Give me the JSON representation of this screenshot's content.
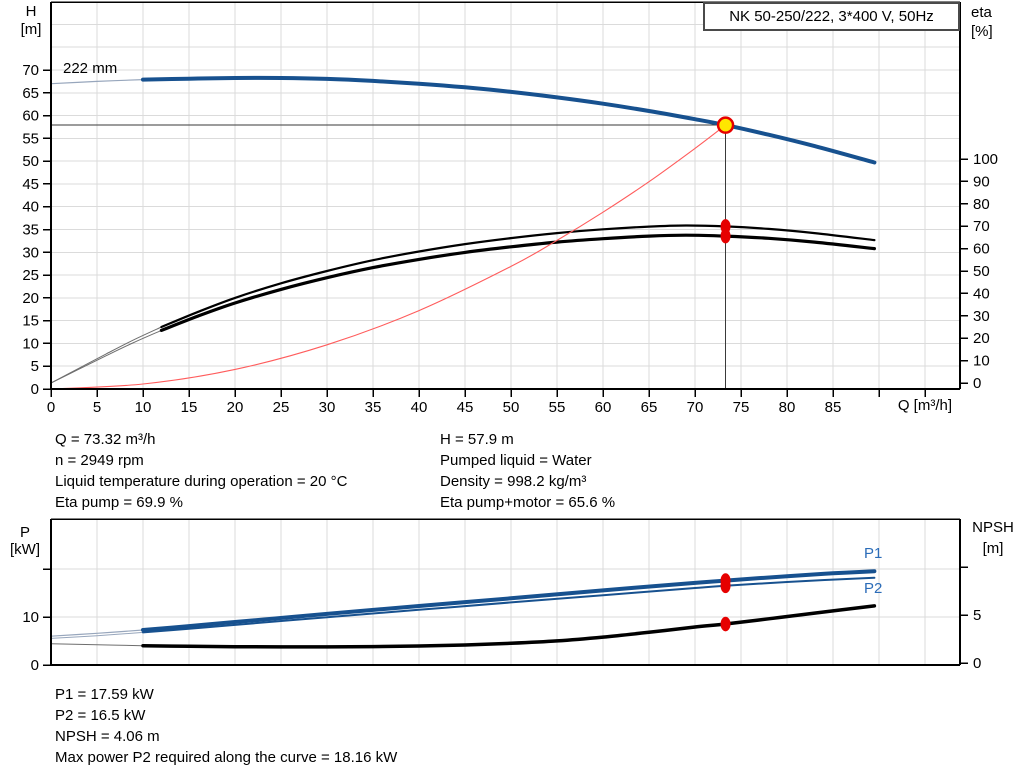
{
  "info_top": {
    "left": [
      "Q = 73.32 m³/h",
      "n = 2949 rpm",
      "Liquid temperature during operation = 20 °C",
      "Eta pump = 69.9 %"
    ],
    "right": [
      "H = 57.9 m",
      "Pumped liquid = Water",
      "Density = 998.2 kg/m³",
      "Eta pump+motor = 65.6 %"
    ]
  },
  "info_bottom": [
    "P1 = 17.59 kW",
    "P2 = 16.5 kW",
    "NPSH = 4.06 m",
    "Max power P2 required along the curve = 18.16 kW"
  ],
  "colors": {
    "curve_blue": "#17518F",
    "curve_blue_thin": "#97A6BC",
    "curve_black": "#000000",
    "curve_black_thin": "#6E6E6E",
    "system_red": "#FF5C5C",
    "marker_red": "#E60000",
    "marker_yellow": "#FFE600",
    "label_blue": "#2B6CB8",
    "grid": "#DBDBDB",
    "axis": "#000000",
    "crosshair": "#3A3A3A"
  },
  "chart_data": [
    {
      "id": "qh-eta",
      "type": "line",
      "title": "NK 50-250/222, 3*400 V, 50Hz",
      "x": {
        "label": "Q [m³/h]",
        "min": 0,
        "max": 98.8,
        "grid_step": 5,
        "grid_to": 95,
        "ticks_to": 95,
        "labels_to": 85
      },
      "y_left": {
        "label_lines": [
          "H",
          "[m]"
        ],
        "min": 0,
        "max": 84.5,
        "labeled_ticks": [
          0,
          5,
          10,
          15,
          20,
          25,
          30,
          35,
          40,
          45,
          50,
          55,
          60,
          65,
          70
        ],
        "hgrid": [
          5,
          10,
          15,
          20,
          25,
          30,
          35,
          40,
          45,
          50,
          55,
          60,
          65,
          70,
          75,
          80
        ]
      },
      "y_right": {
        "label_lines": [
          "eta",
          "[%]"
        ],
        "min": 0,
        "max": 100,
        "labeled_ticks": [
          0,
          10,
          20,
          30,
          40,
          50,
          60,
          70,
          80,
          90,
          100
        ]
      },
      "series": [
        {
          "id": "qh-222mm",
          "name": "222 mm",
          "axis": "left",
          "color": "#17518F",
          "width": 4,
          "thin_until": 10,
          "thin_color": "#97A6BC",
          "thin_width": 1.2,
          "points": [
            [
              0,
              67
            ],
            [
              5,
              67.5
            ],
            [
              10,
              67.9
            ],
            [
              15,
              68.1
            ],
            [
              20,
              68.25
            ],
            [
              25,
              68.25
            ],
            [
              30,
              68.05
            ],
            [
              35,
              67.6
            ],
            [
              40,
              67
            ],
            [
              45,
              66.2
            ],
            [
              50,
              65.2
            ],
            [
              55,
              64
            ],
            [
              60,
              62.6
            ],
            [
              65,
              61
            ],
            [
              70,
              59.2
            ],
            [
              73.32,
              57.9
            ],
            [
              78,
              55.8
            ],
            [
              83,
              53.3
            ],
            [
              89.5,
              49.7
            ]
          ]
        },
        {
          "id": "eta-pump",
          "name": "Eta pump",
          "axis": "right",
          "color": "#000000",
          "width": 2.2,
          "thin_until": 12,
          "thin_color": "#6E6E6E",
          "thin_width": 1,
          "points": [
            [
              0,
              0
            ],
            [
              3,
              6.5
            ],
            [
              6,
              13
            ],
            [
              9,
              19.3
            ],
            [
              12,
              25
            ],
            [
              16,
              31.8
            ],
            [
              20,
              38
            ],
            [
              25,
              44.5
            ],
            [
              30,
              50
            ],
            [
              35,
              54.8
            ],
            [
              40,
              58.7
            ],
            [
              45,
              62
            ],
            [
              50,
              64.7
            ],
            [
              55,
              66.9
            ],
            [
              60,
              68.6
            ],
            [
              65,
              69.8
            ],
            [
              69,
              70.3
            ],
            [
              73.32,
              69.9
            ],
            [
              78,
              68.8
            ],
            [
              83,
              66.9
            ],
            [
              89.5,
              63.8
            ]
          ]
        },
        {
          "id": "eta-pump-motor",
          "name": "Eta pump+motor",
          "axis": "right",
          "color": "#000000",
          "width": 3.2,
          "thin_until": 12,
          "thin_color": "#6E6E6E",
          "thin_width": 1,
          "points": [
            [
              0,
              0
            ],
            [
              3,
              6.1
            ],
            [
              6,
              12.2
            ],
            [
              9,
              18.1
            ],
            [
              12,
              23.5
            ],
            [
              16,
              29.9
            ],
            [
              20,
              35.7
            ],
            [
              25,
              41.8
            ],
            [
              30,
              47
            ],
            [
              35,
              51.5
            ],
            [
              40,
              55.2
            ],
            [
              45,
              58.3
            ],
            [
              50,
              60.8
            ],
            [
              55,
              62.9
            ],
            [
              60,
              64.4
            ],
            [
              65,
              65.6
            ],
            [
              69,
              66
            ],
            [
              73.32,
              65.6
            ],
            [
              78,
              64.6
            ],
            [
              83,
              62.9
            ],
            [
              89.5,
              60
            ]
          ]
        },
        {
          "id": "system-curve",
          "name": "System curve",
          "axis": "left",
          "color": "#FF5C5C",
          "width": 1.1,
          "points": [
            [
              0,
              0
            ],
            [
              10,
              1.1
            ],
            [
              20,
              4.3
            ],
            [
              30,
              9.7
            ],
            [
              40,
              17.2
            ],
            [
              50,
              26.9
            ],
            [
              55,
              32.6
            ],
            [
              60,
              38.8
            ],
            [
              65,
              45.5
            ],
            [
              70,
              52.8
            ],
            [
              73.32,
              57.9
            ]
          ]
        }
      ],
      "annotations": {
        "curve_label": "222 mm",
        "crosshair": {
          "q": 73.32,
          "value": 57.9
        },
        "markers": [
          {
            "name": "duty-point-marker",
            "axis": "left",
            "q": 73.32,
            "value": 57.9,
            "shape": "circle",
            "fill": "#FFE600",
            "stroke": "#E60000"
          },
          {
            "name": "eta-pump-point",
            "axis": "right",
            "q": 73.32,
            "value": 69.9,
            "shape": "ellipse",
            "fill": "#E60000"
          },
          {
            "name": "eta-pump-motor-point",
            "axis": "right",
            "q": 73.32,
            "value": 65.6,
            "shape": "ellipse",
            "fill": "#E60000"
          }
        ]
      }
    },
    {
      "id": "power-npsh",
      "type": "line",
      "x": {
        "min": 0,
        "max": 98.8,
        "grid_step": 5,
        "grid_to": 95
      },
      "y_left": {
        "label_lines": [
          "P",
          "[kW]"
        ],
        "min": 0,
        "max": 30.4,
        "all_ticks": [
          0,
          10,
          20
        ],
        "labeled_ticks": [
          0,
          10
        ],
        "hgrid": [
          10,
          20
        ]
      },
      "y_right": {
        "label_lines": [
          "NPSH",
          "[m]"
        ],
        "min": 0,
        "max": 14.6,
        "all_ticks": [
          0,
          5,
          10
        ],
        "labeled_ticks": [
          0,
          5
        ]
      },
      "series": [
        {
          "id": "p1",
          "name": "P1",
          "axis": "left",
          "color": "#17518F",
          "width": 4,
          "thin_until": 10,
          "thin_color": "#97A6BC",
          "thin_width": 1.2,
          "points": [
            [
              0,
              6
            ],
            [
              5,
              6.6
            ],
            [
              10,
              7.3
            ],
            [
              15,
              8.1
            ],
            [
              20,
              8.95
            ],
            [
              30,
              10.65
            ],
            [
              40,
              12.3
            ],
            [
              50,
              13.9
            ],
            [
              60,
              15.55
            ],
            [
              70,
              17.1
            ],
            [
              73.32,
              17.59
            ],
            [
              80,
              18.5
            ],
            [
              85,
              19.1
            ],
            [
              89.5,
              19.55
            ]
          ]
        },
        {
          "id": "p2",
          "name": "P2",
          "axis": "left",
          "color": "#17518F",
          "width": 2,
          "thin_until": 10,
          "thin_color": "#97A6BC",
          "thin_width": 1,
          "points": [
            [
              0,
              5.55
            ],
            [
              5,
              6.1
            ],
            [
              10,
              6.8
            ],
            [
              15,
              7.55
            ],
            [
              20,
              8.35
            ],
            [
              30,
              9.95
            ],
            [
              40,
              11.5
            ],
            [
              50,
              13.05
            ],
            [
              60,
              14.55
            ],
            [
              70,
              16.05
            ],
            [
              73.32,
              16.5
            ],
            [
              80,
              17.3
            ],
            [
              85,
              17.8
            ],
            [
              89.5,
              18.16
            ]
          ]
        },
        {
          "id": "npsh",
          "name": "NPSH",
          "axis": "right",
          "color": "#000000",
          "width": 3.5,
          "thin_until": 10,
          "thin_color": "#6E6E6E",
          "thin_width": 1,
          "points": [
            [
              0,
              2
            ],
            [
              5,
              1.9
            ],
            [
              10,
              1.8
            ],
            [
              15,
              1.74
            ],
            [
              20,
              1.7
            ],
            [
              25,
              1.68
            ],
            [
              30,
              1.68
            ],
            [
              35,
              1.71
            ],
            [
              40,
              1.77
            ],
            [
              45,
              1.88
            ],
            [
              50,
              2.05
            ],
            [
              55,
              2.3
            ],
            [
              60,
              2.7
            ],
            [
              65,
              3.2
            ],
            [
              70,
              3.75
            ],
            [
              73.32,
              4.06
            ],
            [
              78,
              4.6
            ],
            [
              83,
              5.2
            ],
            [
              89.5,
              5.95
            ]
          ]
        }
      ],
      "annotations": {
        "markers": [
          {
            "name": "p1-point",
            "axis": "left",
            "q": 73.32,
            "value": 17.59,
            "shape": "ellipse",
            "fill": "#E60000"
          },
          {
            "name": "p2-point",
            "axis": "left",
            "q": 73.32,
            "value": 16.5,
            "shape": "ellipse",
            "fill": "#E60000"
          },
          {
            "name": "npsh-point",
            "axis": "right",
            "q": 73.32,
            "value": 4.06,
            "shape": "ellipse",
            "fill": "#E60000"
          }
        ]
      }
    }
  ]
}
